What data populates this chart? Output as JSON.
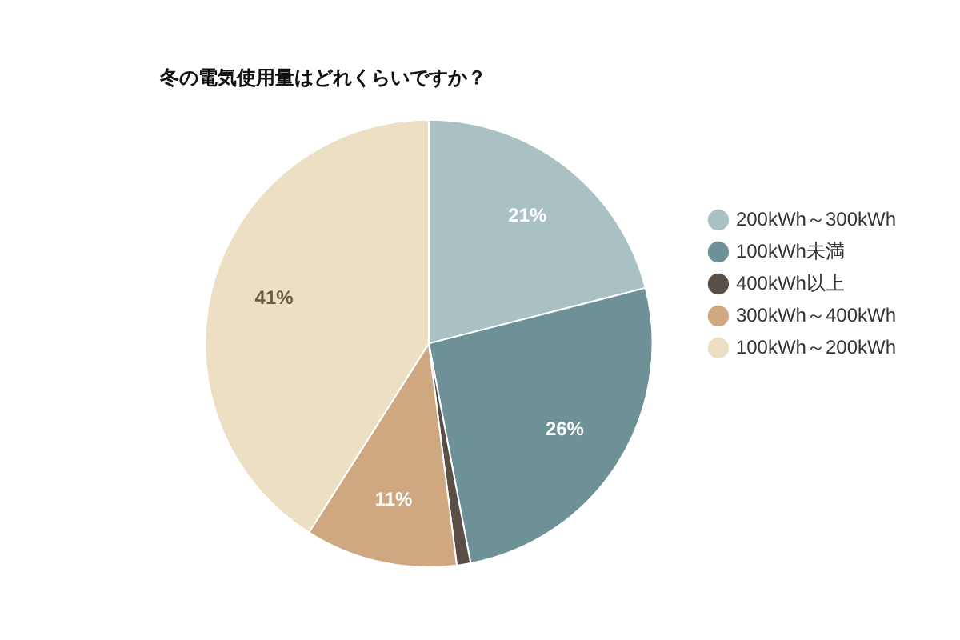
{
  "chart_data": {
    "type": "pie",
    "title": "冬の電気使用量はどれくらいですか？",
    "categories": [
      "200kWh～300kWh",
      "100kWh未満",
      "400kWh以上",
      "300kWh～400kWh",
      "100kWh～200kWh"
    ],
    "values": [
      21,
      26,
      1,
      11,
      41
    ],
    "colors": [
      "#a9c1c3",
      "#6d9196",
      "#5a4f47",
      "#cfa882",
      "#ecdfc4"
    ],
    "value_labels": [
      "21%",
      "26%",
      null,
      "11%",
      "41%"
    ],
    "legend": "right"
  }
}
